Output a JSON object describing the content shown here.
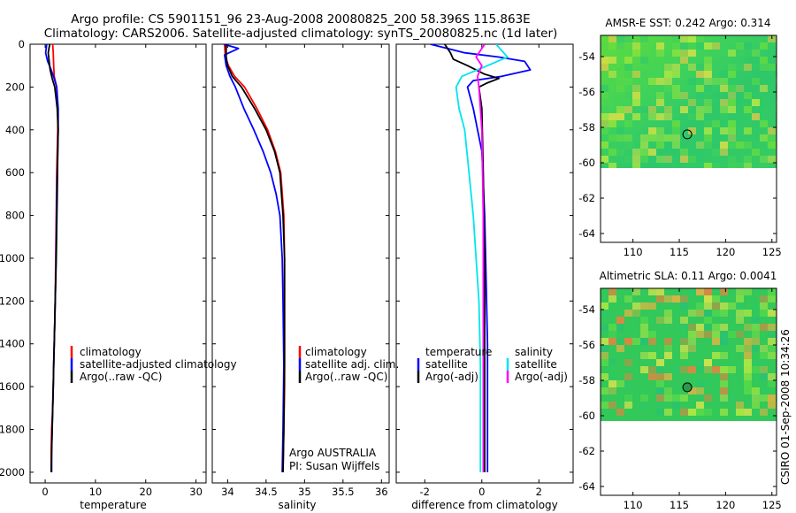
{
  "title": {
    "line1": "Argo profile: CS 5901151_96 23-Aug-2008 20080825_200 58.396S 115.863E",
    "line2": "Climatology: CARS2006. Satellite-adjusted climatology: synTS_20080825.nc (1d later)"
  },
  "colors": {
    "climatology": "#ff0000",
    "satellite": "#0000ff",
    "argo": "#000000",
    "sat_diff": "#00e5ee",
    "argo_sal_diff": "#ff00ff"
  },
  "chart_data": [
    {
      "type": "line",
      "name": "temperature-panel",
      "xlabel": "temperature",
      "ylabel": "",
      "xlim": [
        -3,
        32
      ],
      "ylim": [
        0,
        2050
      ],
      "y_inverted": true,
      "xticks": [
        "0",
        "10",
        "20",
        "30"
      ],
      "yticks": [
        "0",
        "200",
        "400",
        "600",
        "800",
        "1000",
        "1200",
        "1400",
        "1600",
        "1800",
        "2000"
      ],
      "series": [
        {
          "name": "climatology",
          "color": "#ff0000",
          "x": [
            1.5,
            1.6,
            1.7,
            1.8,
            2.3,
            2.5,
            2.5,
            2.4,
            2.3,
            2.2,
            2.1,
            2.0,
            1.9,
            1.8,
            1.7,
            1.6,
            1.5,
            1.3,
            1.2,
            1.2
          ],
          "y": [
            0,
            40,
            100,
            150,
            200,
            300,
            400,
            500,
            600,
            800,
            1000,
            1200,
            1300,
            1400,
            1500,
            1600,
            1700,
            1800,
            1900,
            2000
          ]
        },
        {
          "name": "satellite-adjusted climatology",
          "color": "#0000ff",
          "x": [
            0.3,
            0.1,
            0.5,
            1.2,
            1.8,
            2.3,
            2.6,
            2.6,
            2.5,
            2.3,
            2.2,
            2.1,
            2.0,
            1.9,
            1.8,
            1.7,
            1.6,
            1.5,
            1.4,
            1.3,
            1.3
          ],
          "y": [
            0,
            40,
            80,
            120,
            160,
            200,
            300,
            400,
            500,
            700,
            900,
            1100,
            1200,
            1300,
            1400,
            1500,
            1600,
            1700,
            1800,
            1900,
            2000
          ]
        },
        {
          "name": "Argo(..raw -QC)",
          "color": "#000000",
          "x": [
            0.9,
            0.6,
            0.8,
            1.0,
            1.4,
            1.9,
            2.4,
            2.6,
            2.5,
            2.4,
            2.2,
            2.0,
            1.9,
            1.8,
            1.7,
            1.6,
            1.5,
            1.4,
            1.3,
            1.2
          ],
          "y": [
            0,
            40,
            80,
            120,
            160,
            200,
            300,
            400,
            500,
            700,
            1000,
            1200,
            1300,
            1400,
            1500,
            1600,
            1700,
            1800,
            1900,
            2000
          ]
        }
      ],
      "legend": [
        "climatology",
        "satellite-adjusted climatology",
        "Argo(..raw -QC)"
      ]
    },
    {
      "type": "line",
      "name": "salinity-panel",
      "xlabel": "salinity",
      "xlim": [
        33.8,
        36.1
      ],
      "ylim": [
        0,
        2050
      ],
      "y_inverted": true,
      "xticks": [
        "34",
        "34.5",
        "35",
        "35.5",
        "36"
      ],
      "series": [
        {
          "name": "climatology",
          "color": "#ff0000",
          "x": [
            33.96,
            33.97,
            34.01,
            34.09,
            34.22,
            34.38,
            34.52,
            34.62,
            34.69,
            34.73,
            34.74,
            34.74,
            34.74,
            34.74,
            34.73,
            34.72
          ],
          "y": [
            0,
            60,
            100,
            150,
            200,
            300,
            400,
            500,
            600,
            800,
            1000,
            1200,
            1400,
            1600,
            1800,
            2000
          ]
        },
        {
          "name": "satellite adj. clim.",
          "color": "#0000ff",
          "x": [
            33.95,
            34.14,
            33.96,
            33.98,
            34.03,
            34.1,
            34.21,
            34.34,
            34.46,
            34.56,
            34.63,
            34.68,
            34.71,
            34.72,
            34.73,
            34.72,
            34.71
          ],
          "y": [
            0,
            20,
            50,
            100,
            150,
            200,
            300,
            400,
            500,
            600,
            700,
            800,
            1000,
            1200,
            1500,
            1800,
            2000
          ]
        },
        {
          "name": "Argo(..raw -QC)",
          "color": "#000000",
          "x": [
            33.98,
            33.98,
            34.0,
            34.06,
            34.18,
            34.35,
            34.5,
            34.61,
            34.68,
            34.72,
            34.74,
            34.74,
            34.74,
            34.73,
            34.72
          ],
          "y": [
            0,
            60,
            100,
            150,
            200,
            300,
            400,
            500,
            600,
            800,
            1000,
            1200,
            1500,
            1800,
            2000
          ]
        }
      ],
      "legend": [
        "climatology",
        "satellite adj. clim.",
        "Argo(..raw -QC)"
      ],
      "annotation": [
        "Argo AUSTRALIA",
        "PI: Susan Wijffels"
      ]
    },
    {
      "type": "line",
      "name": "difference-panel",
      "xlabel": "difference from climatology",
      "xlim": [
        -3,
        3.2
      ],
      "ylim": [
        0,
        2050
      ],
      "y_inverted": true,
      "xticks": [
        "-2",
        "0",
        "2"
      ],
      "series": [
        {
          "name": "temperature satellite",
          "color": "#0000ff",
          "x": [
            -1.8,
            -0.6,
            0.6,
            1.5,
            1.7,
            0.7,
            -0.3,
            -0.5,
            -0.3,
            0.0,
            0.1,
            0.15,
            0.2,
            0.2,
            0.2,
            0.2
          ],
          "y": [
            0,
            40,
            60,
            80,
            120,
            150,
            170,
            200,
            300,
            500,
            800,
            1100,
            1400,
            1700,
            1900,
            2000
          ]
        },
        {
          "name": "temperature Argo(-adj)",
          "color": "#000000",
          "x": [
            -1.3,
            -1.1,
            -1.0,
            -0.5,
            0.1,
            0.6,
            0.2,
            -0.1,
            0.0,
            0.05,
            0.1,
            0.1,
            0.1,
            0.1
          ],
          "y": [
            0,
            40,
            70,
            100,
            140,
            160,
            180,
            200,
            300,
            600,
            1000,
            1400,
            1800,
            2000
          ]
        },
        {
          "name": "salinity satellite",
          "color": "#00e5ee",
          "x": [
            0.5,
            0.9,
            0.2,
            -0.7,
            -0.9,
            -0.8,
            -0.6,
            -0.45,
            -0.3,
            -0.2,
            -0.1,
            -0.05,
            -0.05,
            -0.05
          ],
          "y": [
            0,
            60,
            100,
            150,
            200,
            300,
            400,
            600,
            800,
            1000,
            1200,
            1500,
            1800,
            2000
          ]
        },
        {
          "name": "salinity Argo(-adj)",
          "color": "#ff00ff",
          "x": [
            0.1,
            -0.2,
            0.0,
            -0.15,
            -0.1,
            0.0,
            0.05,
            0.05,
            0.05,
            0.05
          ],
          "y": [
            0,
            60,
            100,
            150,
            200,
            400,
            800,
            1200,
            1600,
            2000
          ]
        }
      ],
      "legend_groups": {
        "left_header": "temperature",
        "right_header": "salinity"
      },
      "legend": [
        {
          "group": "left",
          "label": "satellite",
          "color": "#0000ff"
        },
        {
          "group": "left",
          "label": "Argo(-adj)",
          "color": "#000000"
        },
        {
          "group": "right",
          "label": "satellite",
          "color": "#00e5ee"
        },
        {
          "group": "right",
          "label": "Argo(-adj)",
          "color": "#ff00ff"
        }
      ]
    },
    {
      "type": "heatmap",
      "name": "sst-map",
      "title": "AMSR-E SST: 0.242 Argo: 0.314",
      "xlim": [
        106.5,
        125.5
      ],
      "ylim": [
        -64.5,
        -52.8
      ],
      "data_ylim": [
        -60,
        -52.8
      ],
      "xticks": [
        "110",
        "115",
        "120",
        "125"
      ],
      "yticks": [
        "-54",
        "-56",
        "-58",
        "-60",
        "-62",
        "-64"
      ],
      "marker": {
        "lon": 115.863,
        "lat": -58.396,
        "filled": false
      }
    },
    {
      "type": "heatmap",
      "name": "sla-map",
      "title": "Altimetric SLA: 0.11 Argo: 0.0041",
      "xlim": [
        106.5,
        125.5
      ],
      "ylim": [
        -64.5,
        -52.8
      ],
      "data_ylim": [
        -60,
        -52.8
      ],
      "xticks": [
        "110",
        "115",
        "120",
        "125"
      ],
      "yticks": [
        "-54",
        "-56",
        "-58",
        "-60",
        "-62",
        "-64"
      ],
      "marker": {
        "lon": 115.863,
        "lat": -58.396,
        "filled": true
      }
    }
  ],
  "watermark": "CSIRO 01-Sep-2008 10:34:26"
}
